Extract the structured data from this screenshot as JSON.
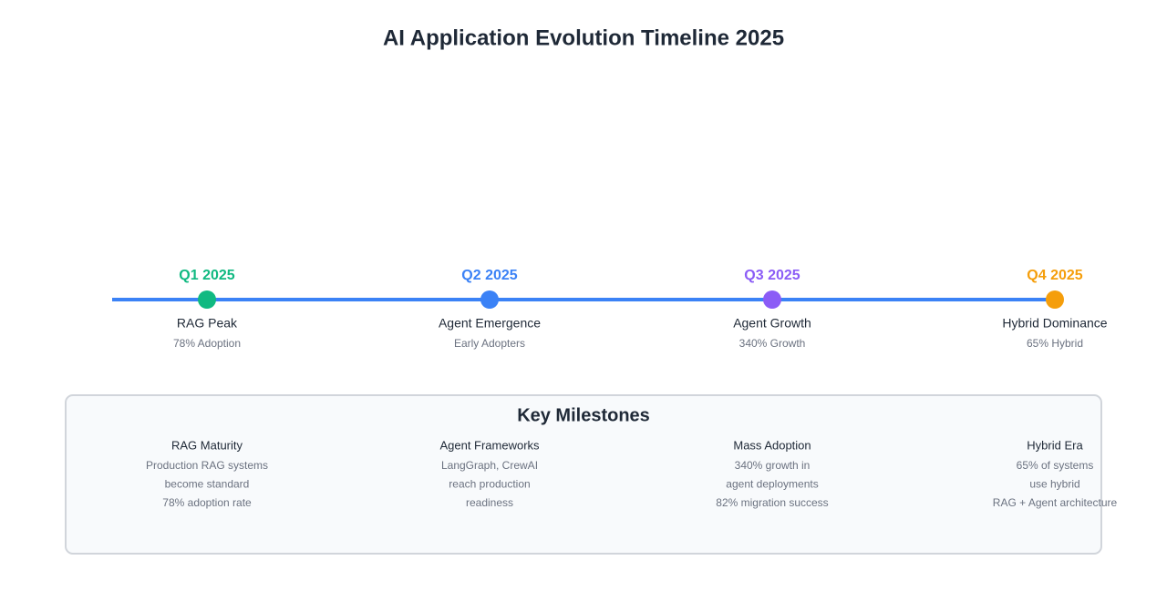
{
  "title": "AI Application Evolution Timeline 2025",
  "timeline": [
    {
      "quarter": "Q1 2025",
      "label": "RAG Peak",
      "detail": "78% Adoption",
      "color": "#10b981"
    },
    {
      "quarter": "Q2 2025",
      "label": "Agent Emergence",
      "detail": "Early Adopters",
      "color": "#3b82f6"
    },
    {
      "quarter": "Q3 2025",
      "label": "Agent Growth",
      "detail": "340% Growth",
      "color": "#8b5cf6"
    },
    {
      "quarter": "Q4 2025",
      "label": "Hybrid Dominance",
      "detail": "65% Hybrid",
      "color": "#f59e0b"
    }
  ],
  "milestones": {
    "title": "Key Milestones",
    "items": [
      {
        "title": "RAG Maturity",
        "lines": [
          "Production RAG systems",
          "become standard",
          "78% adoption rate"
        ]
      },
      {
        "title": "Agent Frameworks",
        "lines": [
          "LangGraph, CrewAI",
          "reach production",
          "readiness"
        ]
      },
      {
        "title": "Mass Adoption",
        "lines": [
          "340% growth in",
          "agent deployments",
          "82% migration success"
        ]
      },
      {
        "title": "Hybrid Era",
        "lines": [
          "65% of systems",
          "use hybrid",
          "RAG + Agent architecture"
        ]
      }
    ]
  }
}
